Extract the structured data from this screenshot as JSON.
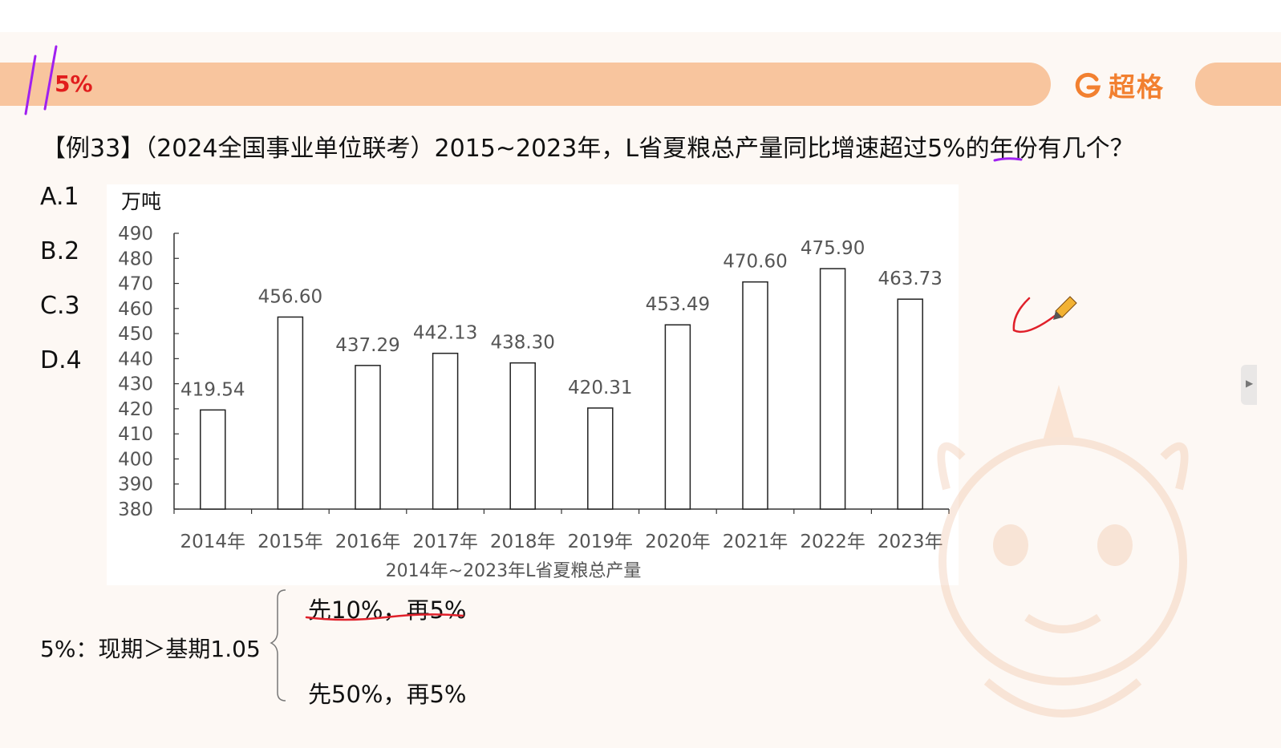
{
  "header": {
    "title": "5%",
    "brand": "超格"
  },
  "question": {
    "text": "【例33】（2024全国事业单位联考）2015~2023年，L省夏粮总产量同比增速超过5%的年份有几个？"
  },
  "options": [
    "A.1",
    "B.2",
    "C.3",
    "D.4"
  ],
  "colors": {
    "accent": "#f28030",
    "band": "#f8c59e",
    "title_red": "#e11d1d",
    "pen_red": "#e0202a",
    "pen_purple": "#a020f0"
  },
  "chart_data": {
    "type": "bar",
    "title": "2014年~2023年L省夏粮总产量",
    "ylabel": "万吨",
    "xlabel": "",
    "categories": [
      "2014年",
      "2015年",
      "2016年",
      "2017年",
      "2018年",
      "2019年",
      "2020年",
      "2021年",
      "2022年",
      "2023年"
    ],
    "values": [
      419.54,
      456.6,
      437.29,
      442.13,
      438.3,
      420.31,
      453.49,
      470.6,
      475.9,
      463.73
    ],
    "value_labels": [
      "419.54",
      "456.60",
      "437.29",
      "442.13",
      "438.30",
      "420.31",
      "453.49",
      "470.60",
      "475.90",
      "463.73"
    ],
    "yticks": [
      "380",
      "390",
      "400",
      "410",
      "420",
      "430",
      "440",
      "450",
      "460",
      "470",
      "480",
      "490"
    ],
    "ylim": [
      380,
      490
    ],
    "grid": false,
    "legend": "none"
  },
  "notes": {
    "formula": "5%：现期＞基期1.05",
    "branch_1": "先10%，再5%",
    "branch_2": "先50%，再5%"
  }
}
